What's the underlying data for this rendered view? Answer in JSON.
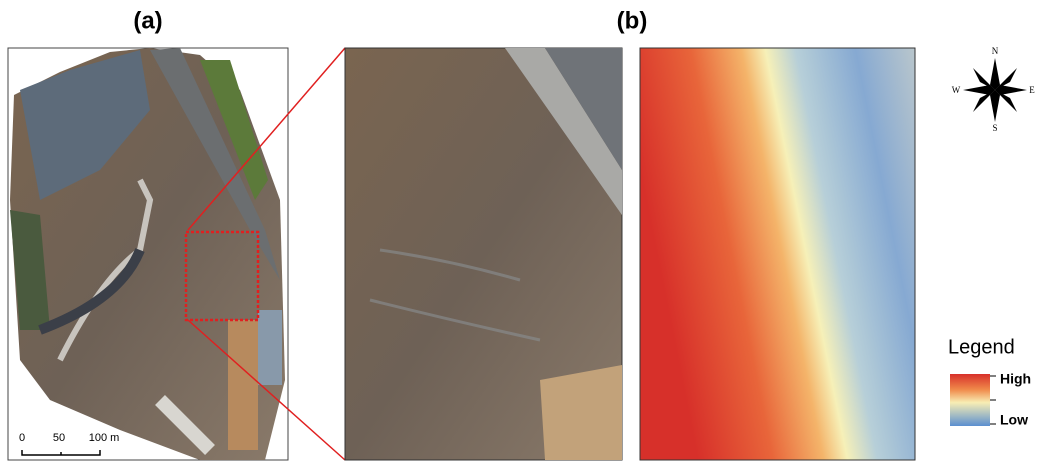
{
  "panels": [
    {
      "label": "(a)",
      "scale_bar": [
        "0",
        "50",
        "100 m"
      ]
    },
    {
      "label": "(b)"
    }
  ],
  "compass": {
    "north": "N",
    "south": "S",
    "east": "E",
    "west": "W"
  },
  "legend": {
    "title": "Legend",
    "high": "High",
    "low": "Low"
  }
}
